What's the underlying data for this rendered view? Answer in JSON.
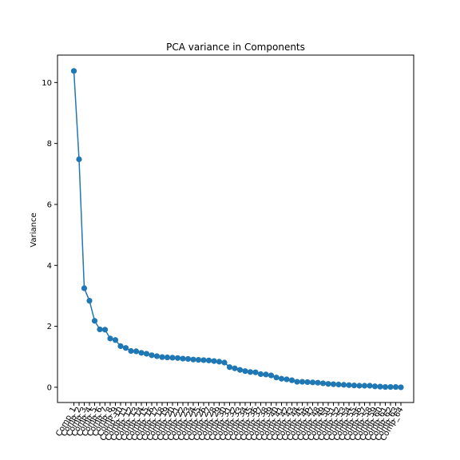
{
  "chart_data": {
    "type": "line",
    "title": "PCA variance in Components",
    "xlabel": "",
    "ylabel": "Variance",
    "categories": [
      "Comp_1",
      "Comp_2",
      "Comp_3",
      "Comp_4",
      "Comp_5",
      "Comp_6",
      "Comp_7",
      "Comp_8",
      "Comp_9",
      "Comp_10",
      "Comp_11",
      "Comp_12",
      "Comp_13",
      "Comp_14",
      "Comp_15",
      "Comp_16",
      "Comp_17",
      "Comp_18",
      "Comp_19",
      "Comp_20",
      "Comp_21",
      "Comp_22",
      "Comp_23",
      "Comp_24",
      "Comp_25",
      "Comp_26",
      "Comp_27",
      "Comp_28",
      "Comp_29",
      "Comp_30",
      "Comp_31",
      "Comp_32",
      "Comp_33",
      "Comp_34",
      "Comp_35",
      "Comp_36",
      "Comp_37",
      "Comp_38",
      "Comp_39",
      "Comp_40",
      "Comp_41",
      "Comp_42",
      "Comp_43",
      "Comp_44",
      "Comp_45",
      "Comp_46",
      "Comp_47",
      "Comp_48",
      "Comp_49",
      "Comp_50",
      "Comp_51",
      "Comp_52",
      "Comp_53",
      "Comp_54",
      "Comp_55",
      "Comp_56",
      "Comp_57",
      "Comp_58",
      "Comp_59",
      "Comp_60",
      "Comp_61",
      "Comp_62",
      "Comp_63",
      "Comp_64"
    ],
    "values": [
      10.38,
      7.48,
      3.25,
      2.84,
      2.18,
      1.9,
      1.89,
      1.6,
      1.55,
      1.35,
      1.29,
      1.19,
      1.18,
      1.13,
      1.1,
      1.05,
      1.02,
      0.99,
      0.98,
      0.97,
      0.96,
      0.94,
      0.93,
      0.91,
      0.9,
      0.89,
      0.88,
      0.86,
      0.84,
      0.81,
      0.66,
      0.62,
      0.57,
      0.53,
      0.5,
      0.49,
      0.43,
      0.42,
      0.39,
      0.32,
      0.28,
      0.26,
      0.23,
      0.18,
      0.18,
      0.17,
      0.16,
      0.15,
      0.13,
      0.11,
      0.1,
      0.09,
      0.08,
      0.07,
      0.06,
      0.05,
      0.05,
      0.05,
      0.03,
      0.02,
      0.01,
      0.01,
      0.01,
      0.0
    ],
    "yticks": [
      0,
      2,
      4,
      6,
      8,
      10
    ],
    "ylim": [
      -0.5,
      10.9
    ],
    "grid": false,
    "line_color": "#1f77b4",
    "marker_color": "#1f77b4"
  }
}
